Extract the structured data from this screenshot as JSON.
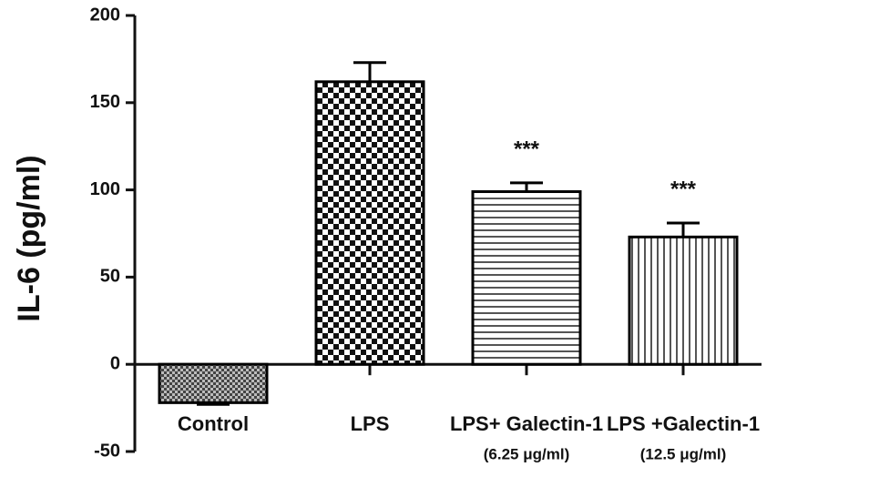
{
  "chart_data": {
    "type": "bar",
    "y_label": "IL-6 (pg/ml)",
    "categories": [
      "Control",
      "LPS",
      "LPS+ Galectin-1",
      "LPS +Galectin-1"
    ],
    "category_notes": [
      null,
      null,
      "(6.25 μg/ml)",
      "(12.5 μg/ml)"
    ],
    "values": [
      -22,
      162,
      99,
      73
    ],
    "errors": [
      1,
      11,
      5,
      8
    ],
    "annotations": [
      null,
      null,
      "***",
      "***"
    ],
    "patterns": [
      "fine-checker",
      "checker",
      "horizontal-lines",
      "vertical-lines"
    ],
    "color": "#000000",
    "ylim": [
      -50,
      200
    ],
    "yticks": [
      -50,
      0,
      50,
      100,
      150,
      200
    ],
    "grid": false
  }
}
